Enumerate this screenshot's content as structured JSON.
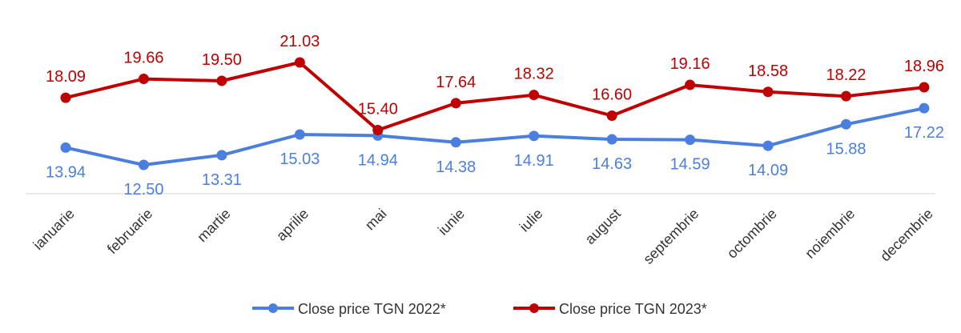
{
  "chart_data": {
    "type": "line",
    "title": "",
    "xlabel": "",
    "ylabel": "",
    "categories": [
      "ianuarie",
      "februarie",
      "martie",
      "aprilie",
      "mai",
      "iunie",
      "iulie",
      "august",
      "septembrie",
      "octombrie",
      "noiembrie",
      "decembrie"
    ],
    "series": [
      {
        "name": "Close price TGN 2022*",
        "color": "#4a7fe0",
        "values": [
          13.94,
          12.5,
          13.31,
          15.03,
          14.94,
          14.38,
          14.91,
          14.63,
          14.59,
          14.09,
          15.88,
          17.22
        ],
        "labels": [
          "13.94",
          "12.50",
          "13.31",
          "15.03",
          "14.94",
          "14.38",
          "14.91",
          "14.63",
          "14.59",
          "14.09",
          "15.88",
          "17.22"
        ]
      },
      {
        "name": "Close price TGN 2023*",
        "color": "#c00000",
        "values": [
          18.09,
          19.66,
          19.5,
          21.03,
          15.4,
          17.64,
          18.32,
          16.6,
          19.16,
          18.58,
          18.22,
          18.96
        ],
        "labels": [
          "18.09",
          "19.66",
          "19.50",
          "21.03",
          "15.40",
          "17.64",
          "18.32",
          "16.60",
          "19.16",
          "18.58",
          "18.22",
          "18.96"
        ]
      }
    ],
    "grid": false,
    "legend_position": "bottom"
  }
}
